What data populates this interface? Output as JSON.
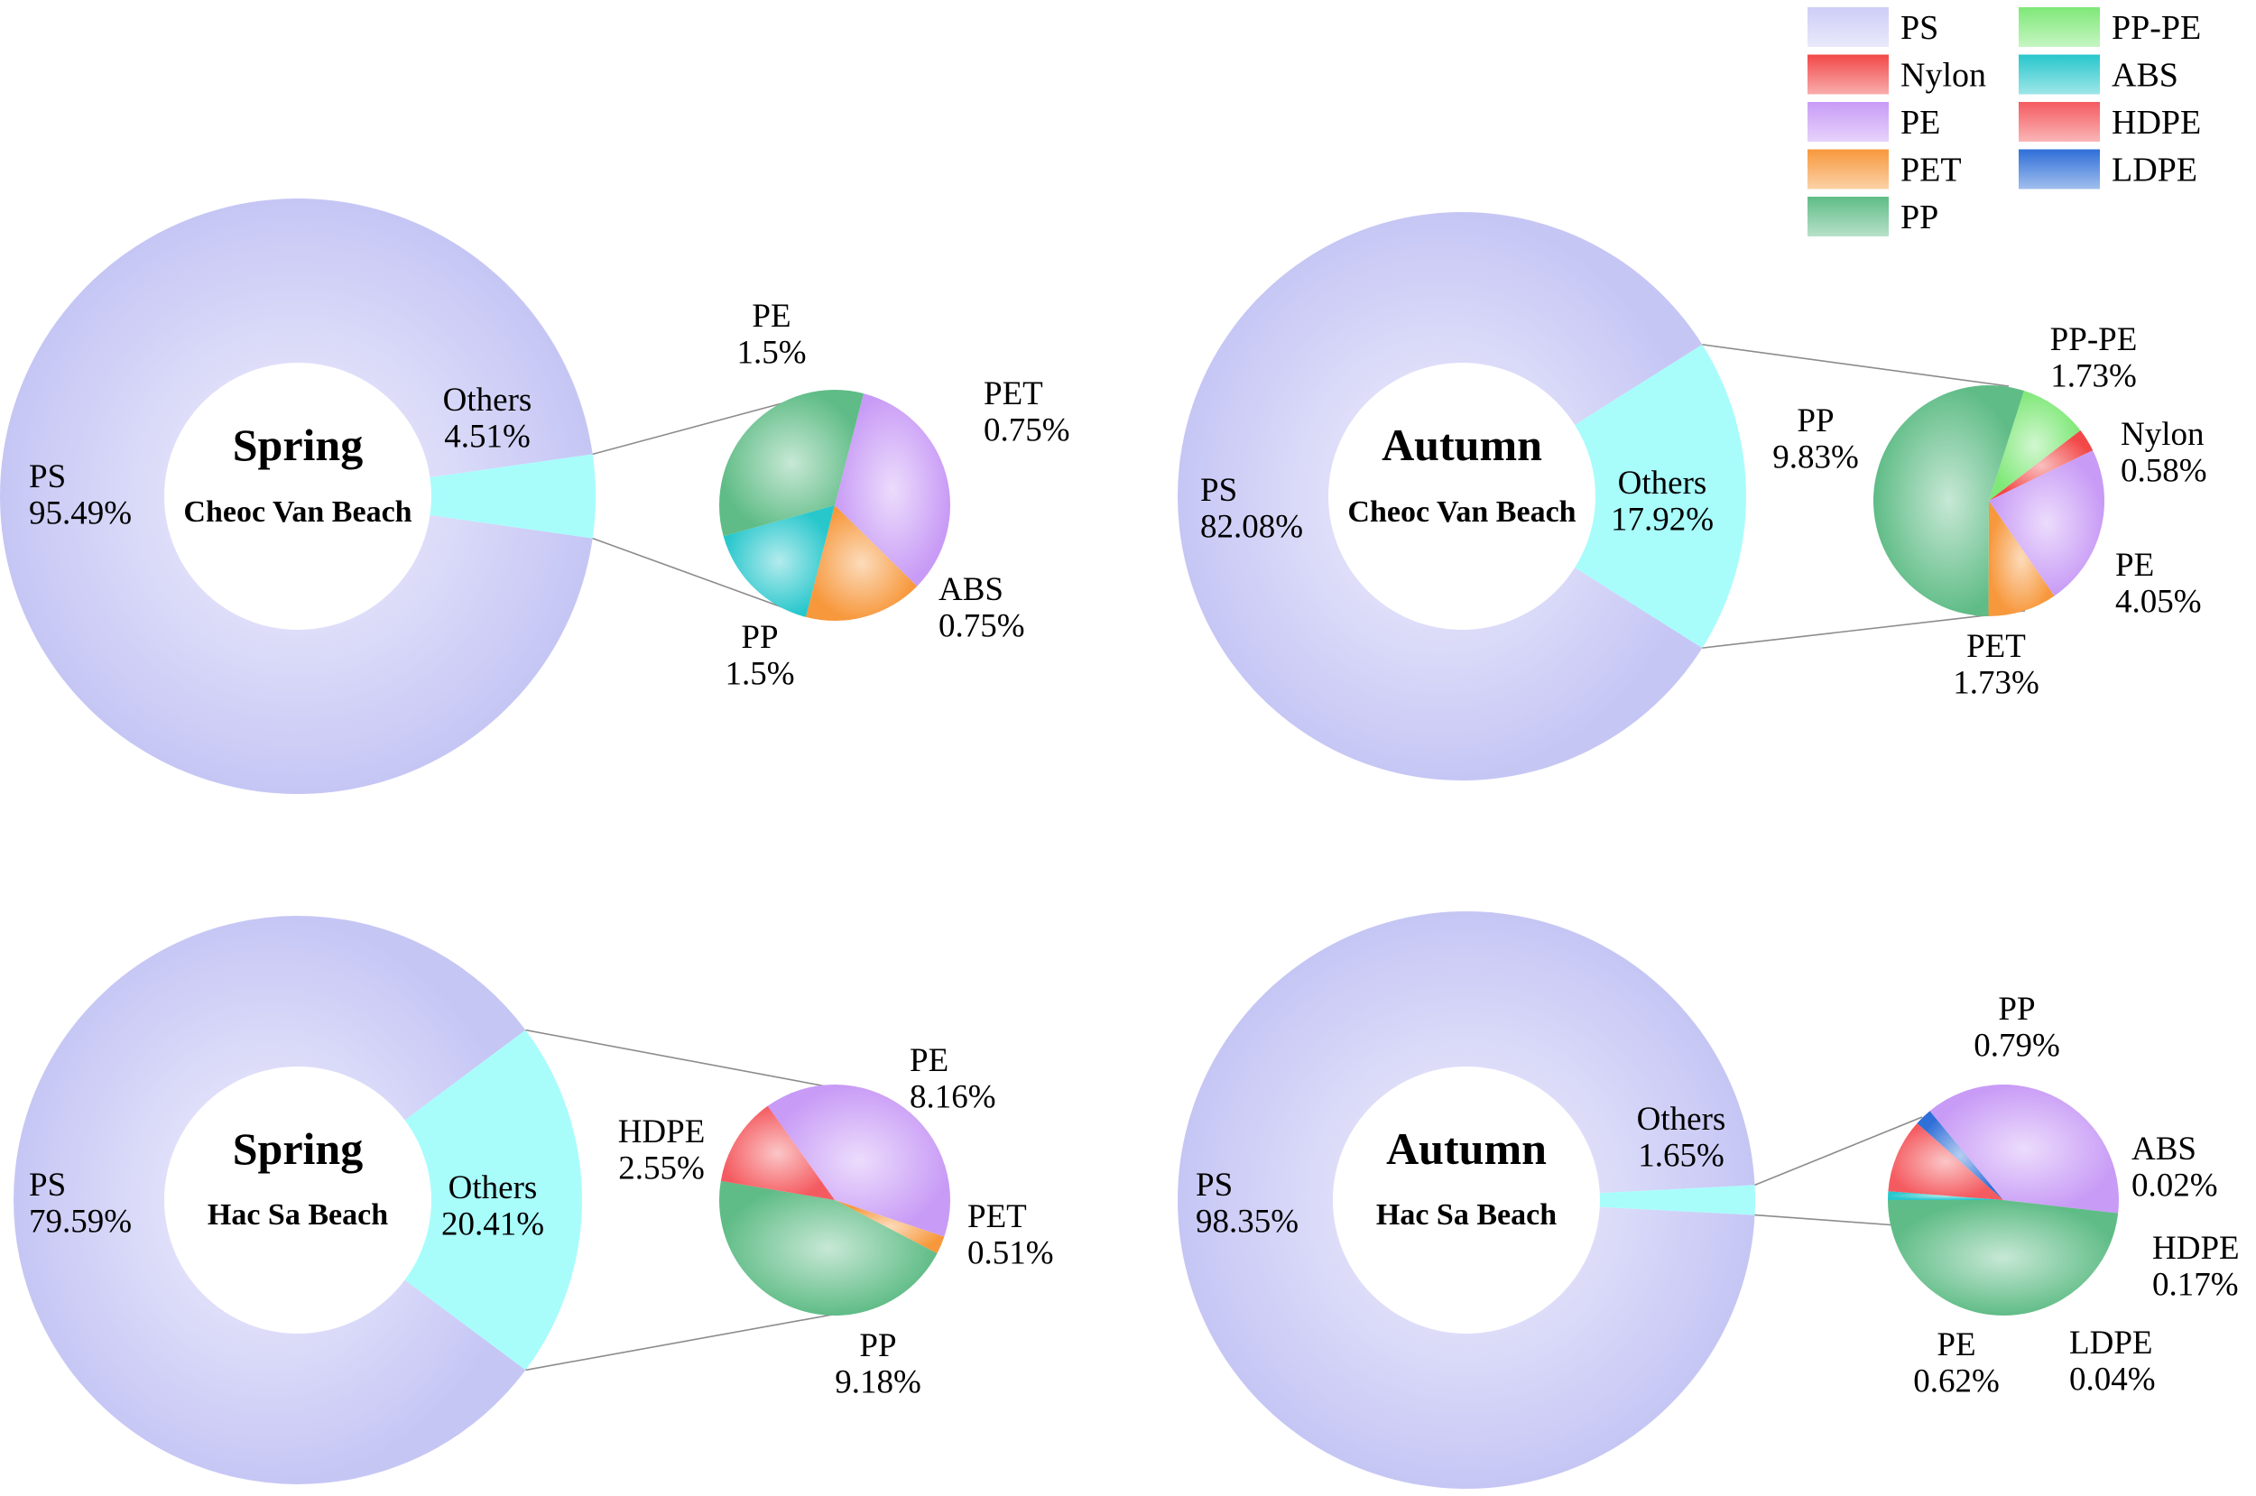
{
  "figure_type": "bar-of-pie composite (donut + sub-pie)",
  "colors": {
    "PS": "#cdcdf7",
    "Others": "#a8fdfb",
    "Nylon": "#f24848",
    "PE": "#c89bf6",
    "PET": "#f7983c",
    "PP": "#5fbc86",
    "PP-PE": "#7fe878",
    "ABS": "#27c7cc",
    "HDPE": "#f45b60",
    "LDPE": "#2f6fd8"
  },
  "legend": {
    "entries": [
      "PS",
      "Nylon",
      "PE",
      "PET",
      "PP",
      "PP-PE",
      "ABS",
      "HDPE",
      "LDPE"
    ]
  },
  "chart_data": [
    {
      "type": "pie",
      "id": "spring-cheoc-van",
      "title": "Spring",
      "subtitle": "Cheoc Van Beach",
      "outer": [
        {
          "name": "PS",
          "value": 95.49,
          "label": "95.49%"
        },
        {
          "name": "Others",
          "value": 4.51,
          "label": "4.51%"
        }
      ],
      "others_breakdown": [
        {
          "name": "PE",
          "value": 1.5,
          "label": "1.5%"
        },
        {
          "name": "PET",
          "value": 0.75,
          "label": "0.75%"
        },
        {
          "name": "ABS",
          "value": 0.75,
          "label": "0.75%"
        },
        {
          "name": "PP",
          "value": 1.5,
          "label": "1.5%"
        }
      ]
    },
    {
      "type": "pie",
      "id": "autumn-cheoc-van",
      "title": "Autumn",
      "subtitle": "Cheoc Van Beach",
      "outer": [
        {
          "name": "PS",
          "value": 82.08,
          "label": "82.08%"
        },
        {
          "name": "Others",
          "value": 17.92,
          "label": "17.92%"
        }
      ],
      "others_breakdown": [
        {
          "name": "PP-PE",
          "value": 1.73,
          "label": "1.73%"
        },
        {
          "name": "Nylon",
          "value": 0.58,
          "label": "0.58%"
        },
        {
          "name": "PE",
          "value": 4.05,
          "label": "4.05%"
        },
        {
          "name": "PET",
          "value": 1.73,
          "label": "1.73%"
        },
        {
          "name": "PP",
          "value": 9.83,
          "label": "9.83%"
        }
      ]
    },
    {
      "type": "pie",
      "id": "spring-hac-sa",
      "title": "Spring",
      "subtitle": "Hac Sa Beach",
      "outer": [
        {
          "name": "PS",
          "value": 79.59,
          "label": "79.59%"
        },
        {
          "name": "Others",
          "value": 20.41,
          "label": "20.41%"
        }
      ],
      "others_breakdown": [
        {
          "name": "PE",
          "value": 8.16,
          "label": "8.16%"
        },
        {
          "name": "PET",
          "value": 0.51,
          "label": "0.51%"
        },
        {
          "name": "PP",
          "value": 9.18,
          "label": "9.18%"
        },
        {
          "name": "HDPE",
          "value": 2.55,
          "label": "2.55%"
        }
      ]
    },
    {
      "type": "pie",
      "id": "autumn-hac-sa",
      "title": "Autumn",
      "subtitle": "Hac Sa Beach",
      "outer": [
        {
          "name": "PS",
          "value": 98.35,
          "label": "98.35%"
        },
        {
          "name": "Others",
          "value": 1.65,
          "label": "1.65%"
        }
      ],
      "others_breakdown": [
        {
          "name": "ABS",
          "value": 0.02,
          "label": "0.02%"
        },
        {
          "name": "HDPE",
          "value": 0.17,
          "label": "0.17%"
        },
        {
          "name": "LDPE",
          "value": 0.04,
          "label": "0.04%"
        },
        {
          "name": "PE",
          "value": 0.62,
          "label": "0.62%"
        },
        {
          "name": "PP",
          "value": 0.79,
          "label": "0.79%"
        }
      ]
    }
  ]
}
